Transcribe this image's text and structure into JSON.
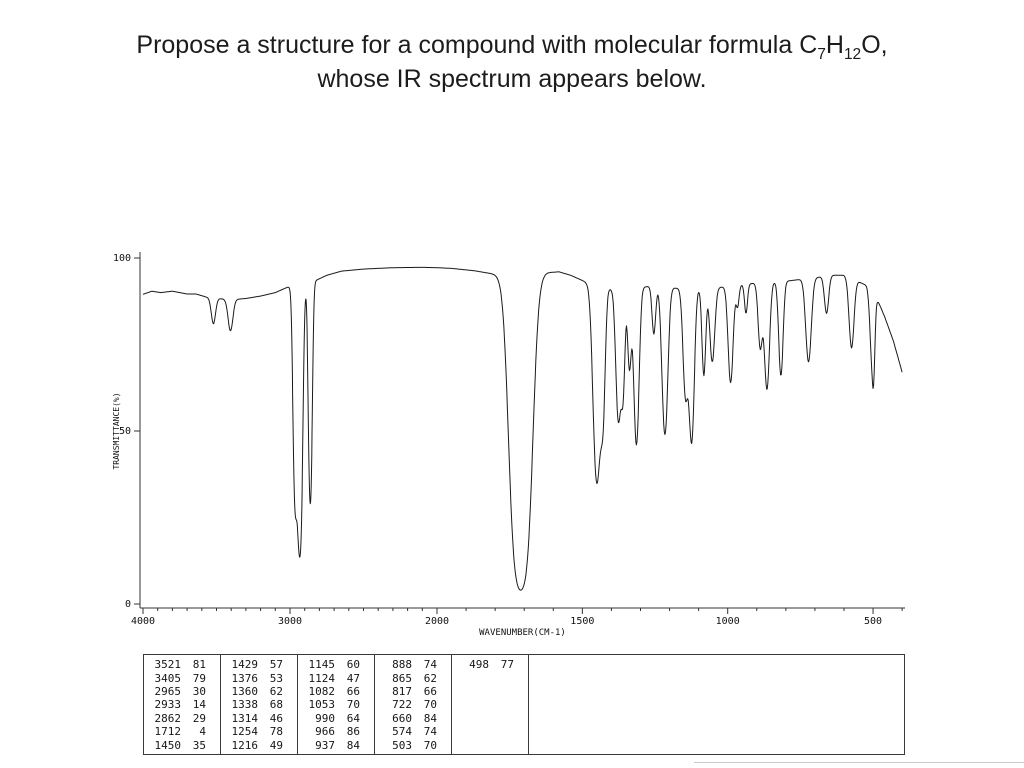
{
  "slide": {
    "title": {
      "line1_prefix": "Propose a structure for a compound with molecular formula C",
      "formula_sub1": "7",
      "formula_h": "H",
      "formula_sub2": "12",
      "formula_tail": "O,",
      "line2": "whose IR spectrum appears below."
    }
  },
  "chart_data": {
    "type": "line",
    "title": "",
    "xlabel": "WAVENUMBER(CM-1)",
    "ylabel": "TRANSMITTANCE(%)",
    "x_ticks": [
      4000,
      3000,
      2000,
      1500,
      1000,
      500
    ],
    "y_ticks": [
      0,
      50,
      100
    ],
    "x_range": [
      4000,
      400
    ],
    "ylim": [
      0,
      100
    ],
    "x_scale_note": "dual-linear wavenumber axis: 4000-2000 compressed, scale doubles below 2000",
    "grid": false,
    "legend": false,
    "baseline_envelope": [
      [
        4000,
        89.5
      ],
      [
        3940,
        90.4
      ],
      [
        3880,
        90.0
      ],
      [
        3800,
        90.4
      ],
      [
        3700,
        89.6
      ],
      [
        3640,
        89.6
      ],
      [
        3560,
        88.6
      ],
      [
        3470,
        88.2
      ],
      [
        3380,
        88.0
      ],
      [
        3300,
        88.3
      ],
      [
        3200,
        89.0
      ],
      [
        3100,
        90.0
      ],
      [
        3020,
        91.5
      ],
      [
        2960,
        92.3
      ],
      [
        2900,
        93.0
      ],
      [
        2820,
        93.6
      ],
      [
        2750,
        95.0
      ],
      [
        2650,
        96.2
      ],
      [
        2500,
        96.8
      ],
      [
        2300,
        97.2
      ],
      [
        2100,
        97.3
      ],
      [
        2000,
        97.2
      ],
      [
        1950,
        97.0
      ],
      [
        1870,
        96.3
      ],
      [
        1800,
        95.3
      ],
      [
        1760,
        94.6
      ],
      [
        1660,
        95.0
      ],
      [
        1620,
        95.8
      ],
      [
        1580,
        96.0
      ],
      [
        1540,
        95.0
      ],
      [
        1500,
        93.5
      ],
      [
        1470,
        92.2
      ],
      [
        1440,
        91.2
      ],
      [
        1400,
        91.0
      ],
      [
        1300,
        91.5
      ],
      [
        1250,
        92.0
      ],
      [
        1200,
        91.5
      ],
      [
        1150,
        91.0
      ],
      [
        1100,
        91.0
      ],
      [
        1050,
        91.3
      ],
      [
        1000,
        91.8
      ],
      [
        950,
        92.3
      ],
      [
        900,
        92.8
      ],
      [
        850,
        93.0
      ],
      [
        800,
        93.3
      ],
      [
        750,
        93.8
      ],
      [
        700,
        94.3
      ],
      [
        640,
        95.0
      ],
      [
        600,
        95.0
      ],
      [
        560,
        93.5
      ],
      [
        520,
        92.0
      ],
      [
        490,
        89.0
      ],
      [
        460,
        83.0
      ],
      [
        430,
        76.0
      ],
      [
        400,
        67.0
      ]
    ],
    "peaks": [
      {
        "nu": 3521,
        "t": 81,
        "w": 14
      },
      {
        "nu": 3405,
        "t": 79,
        "w": 16
      },
      {
        "nu": 2965,
        "t": 30,
        "w": 12
      },
      {
        "nu": 2933,
        "t": 14,
        "w": 14
      },
      {
        "nu": 2862,
        "t": 29,
        "w": 11
      },
      {
        "nu": 1712,
        "t": 4,
        "w": 24
      },
      {
        "nu": 1450,
        "t": 35,
        "w": 11
      },
      {
        "nu": 1429,
        "t": 57,
        "w": 7
      },
      {
        "nu": 1376,
        "t": 53,
        "w": 8
      },
      {
        "nu": 1360,
        "t": 62,
        "w": 6
      },
      {
        "nu": 1338,
        "t": 68,
        "w": 6
      },
      {
        "nu": 1314,
        "t": 46,
        "w": 8
      },
      {
        "nu": 1254,
        "t": 78,
        "w": 6
      },
      {
        "nu": 1216,
        "t": 49,
        "w": 9
      },
      {
        "nu": 1145,
        "t": 60,
        "w": 8
      },
      {
        "nu": 1124,
        "t": 47,
        "w": 8
      },
      {
        "nu": 1082,
        "t": 66,
        "w": 6
      },
      {
        "nu": 1053,
        "t": 70,
        "w": 8
      },
      {
        "nu": 990,
        "t": 64,
        "w": 8
      },
      {
        "nu": 966,
        "t": 86,
        "w": 5
      },
      {
        "nu": 937,
        "t": 84,
        "w": 5
      },
      {
        "nu": 888,
        "t": 74,
        "w": 7
      },
      {
        "nu": 865,
        "t": 62,
        "w": 8
      },
      {
        "nu": 817,
        "t": 66,
        "w": 7
      },
      {
        "nu": 722,
        "t": 70,
        "w": 9
      },
      {
        "nu": 660,
        "t": 84,
        "w": 7
      },
      {
        "nu": 574,
        "t": 74,
        "w": 8
      },
      {
        "nu": 503,
        "t": 70,
        "w": 7
      },
      {
        "nu": 498,
        "t": 77,
        "w": 4
      }
    ]
  },
  "peak_table": {
    "columns": [
      [
        [
          3521,
          81
        ],
        [
          3405,
          79
        ],
        [
          2965,
          30
        ],
        [
          2933,
          14
        ],
        [
          2862,
          29
        ],
        [
          1712,
          4
        ],
        [
          1450,
          35
        ]
      ],
      [
        [
          1429,
          57
        ],
        [
          1376,
          53
        ],
        [
          1360,
          62
        ],
        [
          1338,
          68
        ],
        [
          1314,
          46
        ],
        [
          1254,
          78
        ],
        [
          1216,
          49
        ]
      ],
      [
        [
          1145,
          60
        ],
        [
          1124,
          47
        ],
        [
          1082,
          66
        ],
        [
          1053,
          70
        ],
        [
          990,
          64
        ],
        [
          966,
          86
        ],
        [
          937,
          84
        ]
      ],
      [
        [
          888,
          74
        ],
        [
          865,
          62
        ],
        [
          817,
          66
        ],
        [
          722,
          70
        ],
        [
          660,
          84
        ],
        [
          574,
          74
        ],
        [
          503,
          70
        ]
      ],
      [
        [
          498,
          77
        ]
      ]
    ]
  }
}
